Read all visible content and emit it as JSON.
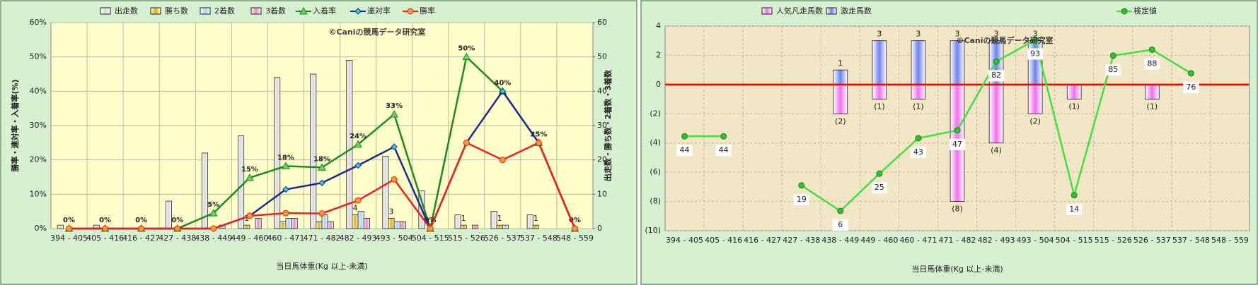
{
  "chart_data": [
    {
      "type": "combo",
      "x_label": "当日馬体重(Kg 以上-未満)",
      "y_label": "勝率・連対率・入着率(%)",
      "y2_label": "出走数・勝ち数・2着数・3着数",
      "annotation": "©Caniの競馬データ研究室",
      "categories": [
        "394 - 405",
        "405 - 416",
        "416 - 427",
        "427 - 438",
        "438 - 449",
        "449 - 460",
        "460 - 471",
        "471 - 482",
        "482 - 493",
        "493 - 504",
        "504 - 515",
        "515 - 526",
        "526 - 537",
        "537 - 548",
        "548 - 559"
      ],
      "series": [
        {
          "name": "出走数",
          "kind": "bar",
          "axis": "y2",
          "color": "#d8d8d8",
          "values": [
            1,
            1,
            0,
            8,
            22,
            27,
            44,
            45,
            49,
            21,
            11,
            4,
            5,
            4,
            0
          ]
        },
        {
          "name": "勝ち数",
          "kind": "bar",
          "axis": "y2",
          "color": "#e0b000",
          "values": [
            0,
            0,
            0,
            0,
            0,
            1,
            2,
            2,
            4,
            3,
            0,
            1,
            1,
            1,
            0
          ],
          "value_labels": [
            null,
            null,
            null,
            null,
            null,
            "1",
            null,
            null,
            "4",
            "3",
            null,
            "1",
            "1",
            "1",
            null
          ]
        },
        {
          "name": "2着数",
          "kind": "bar",
          "axis": "y2",
          "color": "#a8d0e8",
          "values": [
            0,
            0,
            0,
            0,
            0,
            0,
            3,
            4,
            5,
            2,
            0,
            0,
            1,
            0,
            0
          ]
        },
        {
          "name": "3着数",
          "kind": "bar",
          "axis": "y2",
          "color": "#e888c0",
          "values": [
            0,
            0,
            0,
            0,
            1,
            3,
            3,
            2,
            3,
            2,
            0,
            1,
            0,
            0,
            0
          ]
        },
        {
          "name": "入着率",
          "kind": "line",
          "axis": "y",
          "color": "#1a8c1a",
          "marker": "triangle",
          "marker_fill": "#6cd06c",
          "values": [
            0,
            0,
            0,
            0,
            4.5,
            14.8,
            18.2,
            17.8,
            24.5,
            33.3,
            0,
            50,
            40,
            25,
            0
          ],
          "value_labels": [
            "0%",
            "0%",
            "0%",
            "0%",
            "5%",
            "15%",
            "18%",
            "18%",
            "24%",
            "33%",
            "0%",
            "50%",
            "40%",
            "25%",
            "0%"
          ]
        },
        {
          "name": "連対率",
          "kind": "line",
          "axis": "y",
          "color": "#1a2a8a",
          "marker": "diamond",
          "marker_fill": "#30d0e0",
          "values": [
            0,
            0,
            0,
            0,
            0,
            3.7,
            11.4,
            13.3,
            18.4,
            23.8,
            0,
            25,
            40,
            25,
            0
          ]
        },
        {
          "name": "勝率",
          "kind": "line",
          "axis": "y",
          "color": "#ee2020",
          "marker": "circle",
          "marker_fill": "#f0a030",
          "values": [
            0,
            0,
            0,
            0,
            0,
            3.7,
            4.5,
            4.4,
            8.2,
            14.3,
            0,
            25,
            20,
            25,
            0
          ]
        }
      ],
      "ylim": [
        0,
        60
      ],
      "yticks": [
        {
          "value": 0,
          "label": "0%"
        },
        {
          "value": 10,
          "label": "10%"
        },
        {
          "value": 20,
          "label": "20%"
        },
        {
          "value": 30,
          "label": "30%"
        },
        {
          "value": 40,
          "label": "40%"
        },
        {
          "value": 50,
          "label": "50%"
        },
        {
          "value": 60,
          "label": "60%"
        }
      ],
      "y2lim": [
        0,
        60
      ],
      "y2ticks": [
        0,
        10,
        20,
        30,
        40,
        50,
        60
      ],
      "grid": true
    },
    {
      "type": "combo",
      "x_label": "当日馬体重(Kg 以上-未満)",
      "annotation": "©Caniの競馬データ研究室",
      "categories": [
        "394 - 405",
        "405 - 416",
        "416 - 427",
        "427 - 438",
        "438 - 449",
        "449 - 460",
        "460 - 471",
        "471 - 482",
        "482 - 493",
        "493 - 504",
        "504 - 515",
        "515 - 526",
        "526 - 537",
        "537 - 548",
        "548 - 559"
      ],
      "series": [
        {
          "name": "人気凡走馬数",
          "kind": "bar",
          "axis": "y",
          "color": "#f070f0",
          "label_color": "#e00000",
          "values": [
            null,
            null,
            null,
            null,
            -2,
            -1,
            -1,
            -8,
            -4,
            -2,
            -1,
            null,
            -1,
            null,
            null
          ],
          "value_labels": [
            null,
            null,
            null,
            null,
            "(2)",
            "(1)",
            "(1)",
            "(8)",
            "(4)",
            "(2)",
            "(1)",
            null,
            "(1)",
            null,
            null
          ]
        },
        {
          "name": "激走馬数",
          "kind": "bar",
          "axis": "y",
          "color": "#7080f0",
          "label_color": "#111111",
          "values": [
            null,
            null,
            null,
            null,
            1,
            3,
            3,
            3,
            3,
            3,
            null,
            null,
            null,
            null,
            null
          ],
          "value_labels": [
            null,
            null,
            null,
            null,
            "1",
            "3",
            "3",
            "3",
            "3",
            "3",
            null,
            null,
            null,
            null,
            null
          ]
        },
        {
          "name": "検定値",
          "kind": "line",
          "axis": "y2",
          "color": "#40e040",
          "marker": "circle",
          "marker_fill": "#30c030",
          "label_position": "below",
          "label_color": "#208080",
          "values": [
            44,
            44,
            null,
            19,
            6,
            25,
            43,
            47,
            82,
            93,
            14,
            85,
            88,
            76,
            null
          ],
          "value_labels": [
            "44",
            "44",
            null,
            "19",
            "6",
            "25",
            "43",
            "47",
            "82",
            "93",
            "14",
            "85",
            "88",
            "76",
            null
          ]
        }
      ],
      "ylim": [
        -10,
        4
      ],
      "yticks": [
        {
          "value": -10,
          "label": "(10)"
        },
        {
          "value": -8,
          "label": "(8)"
        },
        {
          "value": -6,
          "label": "(6)"
        },
        {
          "value": -4,
          "label": "(4)"
        },
        {
          "value": -2,
          "label": "(2)"
        },
        0,
        2,
        4
      ],
      "y2lim": [
        -4,
        100
      ],
      "zero_line_color": "#ff0000",
      "overlap_bars": true,
      "grid": true
    }
  ]
}
